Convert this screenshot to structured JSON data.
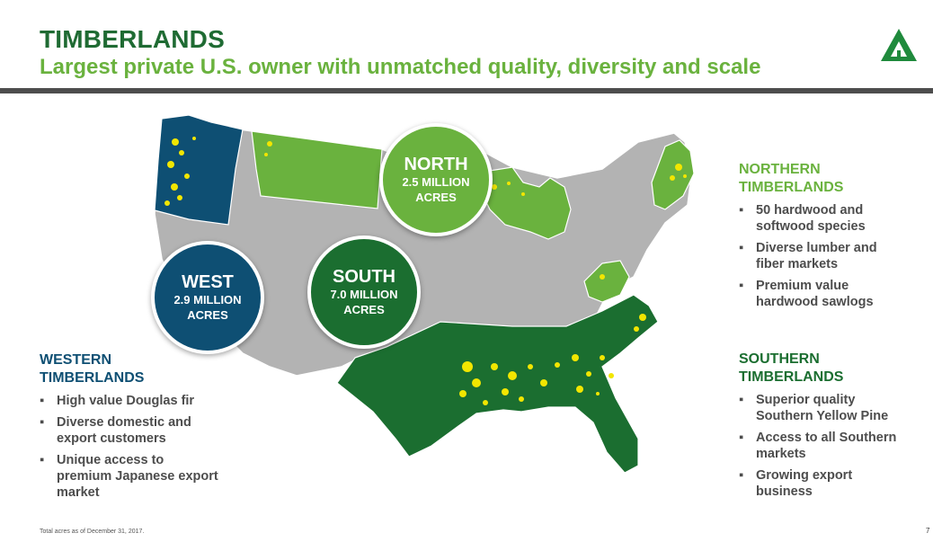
{
  "header": {
    "title": "TIMBERLANDS",
    "subtitle": "Largest private U.S. owner with unmatched quality, diversity and scale"
  },
  "logo": {
    "icon": "tree-triangle-icon",
    "color": "#1f8a3c"
  },
  "colors": {
    "dark_green": "#1b6e30",
    "light_green": "#6ab23e",
    "blue": "#0e4f73",
    "gray_map": "#b3b3b3",
    "timber_yellow": "#f2e600"
  },
  "regions": {
    "west": {
      "name": "WEST",
      "acres_line1": "2.9 MILLION",
      "acres_line2": "ACRES"
    },
    "north": {
      "name": "NORTH",
      "acres_line1": "2.5 MILLION",
      "acres_line2": "ACRES"
    },
    "south": {
      "name": "SOUTH",
      "acres_line1": "7.0 MILLION",
      "acres_line2": "ACRES"
    }
  },
  "western": {
    "heading1": "WESTERN",
    "heading2": "TIMBERLANDS",
    "bullets": [
      {
        "line1": "High value Douglas fir",
        "line2": ""
      },
      {
        "line1": "Diverse domestic and",
        "line2": "export customers"
      },
      {
        "line1": "Unique access to",
        "line2": "premium Japanese export",
        "line3": "market"
      }
    ]
  },
  "northern": {
    "heading1": "NORTHERN",
    "heading2": "TIMBERLANDS",
    "bullets": [
      {
        "line1": "50 hardwood and",
        "line2": "softwood species"
      },
      {
        "line1": "Diverse lumber and",
        "line2": "fiber markets"
      },
      {
        "line1": "Premium value",
        "line2": "hardwood sawlogs"
      }
    ]
  },
  "southern": {
    "heading1": "SOUTHERN",
    "heading2": "TIMBERLANDS",
    "bullets": [
      {
        "line1": "Superior quality",
        "line2": "Southern Yellow Pine"
      },
      {
        "line1": "Access to all Southern",
        "line2": "markets"
      },
      {
        "line1": "Growing export",
        "line2": "business"
      }
    ]
  },
  "footer": {
    "footnote": "Total acres as of December 31, 2017.",
    "page": "7"
  }
}
